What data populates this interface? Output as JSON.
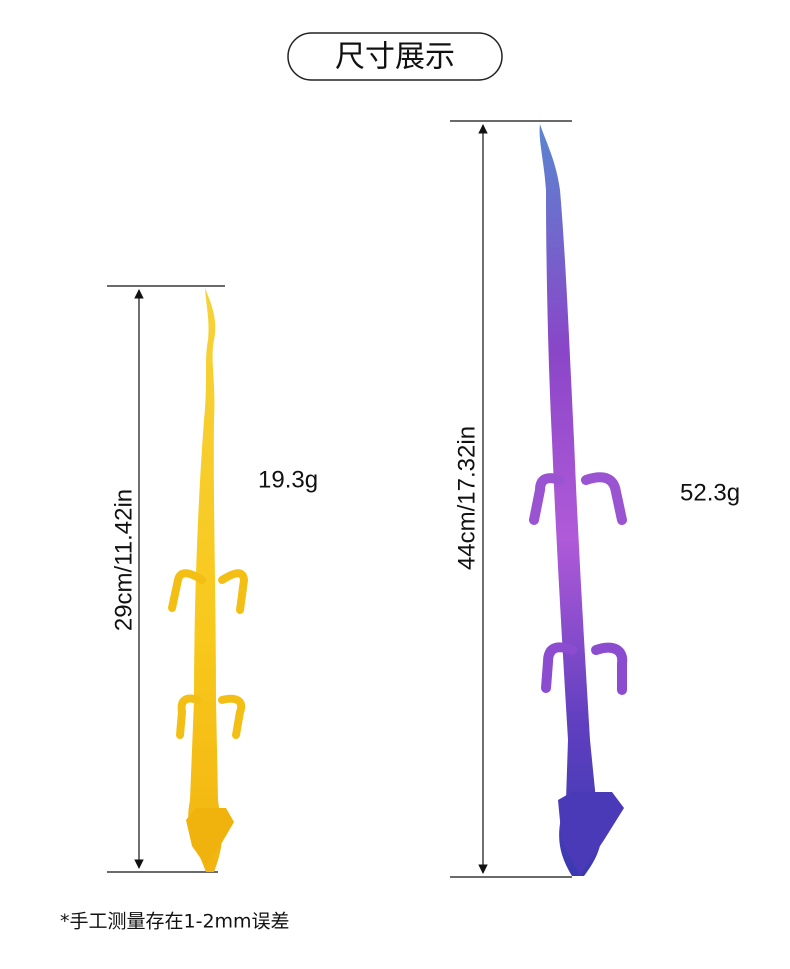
{
  "header": {
    "title": "尺寸展示"
  },
  "products": [
    {
      "size": "29cm/11.42in",
      "weight": "19.3g"
    },
    {
      "size": "44cm/17.32in",
      "weight": "52.3g"
    }
  ],
  "note": "*手工测量存在1-2mm误差"
}
